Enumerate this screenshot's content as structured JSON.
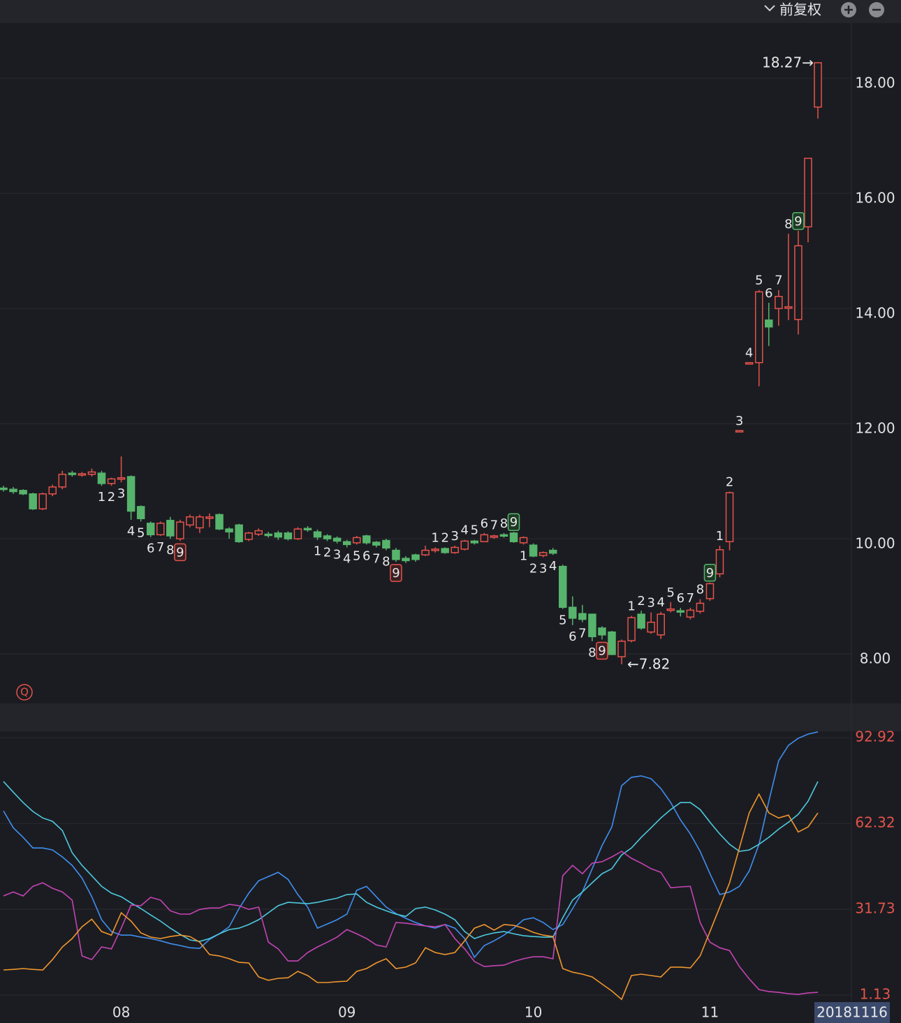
{
  "toolbar": {
    "adjust": "前复权"
  },
  "chart_data": [
    {
      "type": "candlestick",
      "badge": "Q",
      "up_color": "#e5534b",
      "down_color": "#57b46c",
      "grid": true,
      "ylim": [
        7.14,
        18.96
      ],
      "yticks": [
        {
          "value": 8,
          "label": "8.00"
        },
        {
          "value": 10,
          "label": "10.00"
        },
        {
          "value": 12,
          "label": "12.00"
        },
        {
          "value": 14,
          "label": "14.00"
        },
        {
          "value": 16,
          "label": "16.00"
        },
        {
          "value": 18,
          "label": "18.00"
        }
      ],
      "open": [
        10.88,
        10.86,
        10.84,
        10.78,
        10.52,
        10.78,
        10.9,
        11.14,
        11.11,
        11.12,
        11.14,
        10.96,
        11.04,
        11.08,
        10.56,
        10.27,
        10.07,
        10.32,
        10.0,
        10.24,
        10.19,
        10.36,
        10.42,
        10.17,
        10.24,
        9.99,
        10.08,
        10.08,
        10.1,
        10.1,
        10.0,
        10.18,
        10.12,
        10.05,
        10.01,
        9.95,
        9.93,
        10.05,
        9.94,
        9.97,
        9.8,
        9.66,
        9.72,
        9.72,
        9.8,
        9.83,
        9.76,
        9.82,
        9.96,
        9.95,
        10.03,
        10.07,
        10.1,
        9.93,
        9.89,
        9.71,
        9.8,
        9.52,
        8.81,
        8.7,
        8.69,
        8.45,
        8.38,
        7.95,
        8.23,
        8.69,
        8.38,
        8.33,
        8.76,
        8.75,
        8.64,
        8.74,
        8.96,
        9.39,
        9.95,
        11.87,
        13.05,
        13.06,
        13.8,
        14.0,
        14.02,
        13.81,
        15.42,
        17.5
      ],
      "high": [
        10.92,
        10.9,
        10.86,
        10.8,
        10.8,
        10.94,
        11.18,
        11.18,
        11.16,
        11.22,
        11.18,
        11.06,
        11.43,
        11.1,
        10.58,
        10.3,
        10.3,
        10.38,
        10.33,
        10.42,
        10.42,
        10.44,
        10.44,
        10.2,
        10.26,
        10.12,
        10.18,
        10.12,
        10.14,
        10.13,
        10.2,
        10.22,
        10.16,
        10.08,
        10.04,
        9.98,
        10.05,
        10.07,
        9.96,
        10.0,
        9.84,
        9.7,
        9.74,
        9.88,
        9.85,
        9.85,
        9.88,
        9.98,
        9.98,
        10.1,
        10.07,
        10.1,
        10.12,
        10.04,
        9.92,
        9.78,
        9.84,
        9.55,
        9.0,
        8.85,
        8.7,
        8.48,
        8.4,
        8.25,
        8.66,
        8.75,
        8.72,
        8.73,
        8.9,
        8.8,
        8.8,
        8.95,
        9.24,
        9.88,
        10.82,
        11.88,
        13.06,
        14.32,
        14.1,
        14.32,
        15.3,
        15.35,
        16.61,
        18.27
      ],
      "low": [
        10.82,
        10.78,
        10.76,
        10.5,
        10.5,
        10.74,
        10.86,
        11.08,
        11.08,
        11.08,
        10.92,
        10.92,
        10.98,
        10.33,
        10.3,
        10.03,
        10.05,
        10.0,
        9.96,
        10.2,
        10.1,
        10.2,
        10.15,
        10.0,
        9.93,
        9.96,
        10.05,
        10.02,
        9.98,
        9.97,
        9.98,
        10.12,
        9.98,
        9.96,
        9.92,
        9.85,
        9.9,
        9.9,
        9.85,
        9.8,
        9.6,
        9.58,
        9.6,
        9.7,
        9.76,
        9.74,
        9.74,
        9.8,
        9.9,
        9.94,
        10.0,
        10.02,
        9.93,
        9.9,
        9.68,
        9.68,
        9.72,
        8.78,
        8.5,
        8.55,
        8.22,
        8.25,
        7.98,
        7.82,
        8.2,
        8.42,
        8.35,
        8.26,
        8.72,
        8.65,
        8.6,
        8.7,
        8.92,
        9.33,
        9.8,
        11.87,
        13.05,
        12.65,
        13.35,
        13.7,
        13.8,
        13.55,
        15.15,
        17.3
      ],
      "close": [
        10.86,
        10.82,
        10.78,
        10.52,
        10.78,
        10.9,
        11.12,
        11.12,
        11.13,
        11.16,
        10.96,
        11.04,
        11.06,
        10.48,
        10.35,
        10.07,
        10.27,
        10.05,
        10.29,
        10.38,
        10.38,
        10.38,
        10.17,
        10.12,
        9.95,
        10.1,
        10.14,
        10.06,
        10.03,
        10.0,
        10.17,
        10.16,
        10.03,
        10.0,
        9.96,
        9.9,
        10.02,
        9.93,
        9.89,
        9.84,
        9.64,
        9.62,
        9.64,
        9.8,
        9.82,
        9.76,
        9.85,
        9.96,
        9.93,
        10.07,
        10.05,
        10.05,
        9.95,
        10.02,
        9.7,
        9.76,
        9.75,
        8.81,
        8.62,
        8.6,
        8.3,
        8.33,
        7.99,
        8.22,
        8.63,
        8.45,
        8.55,
        8.69,
        8.78,
        8.73,
        8.76,
        8.88,
        9.22,
        9.81,
        10.8,
        11.88,
        13.06,
        14.29,
        13.68,
        14.21,
        14.03,
        15.09,
        16.61,
        18.27
      ],
      "td_buy": [
        null,
        null,
        null,
        null,
        null,
        null,
        null,
        null,
        null,
        null,
        1,
        2,
        3,
        4,
        5,
        6,
        7,
        8,
        9,
        null,
        null,
        null,
        null,
        null,
        null,
        null,
        null,
        null,
        null,
        null,
        null,
        null,
        1,
        2,
        3,
        4,
        5,
        6,
        7,
        8,
        9,
        null,
        null,
        null,
        null,
        null,
        null,
        null,
        null,
        null,
        null,
        null,
        null,
        1,
        2,
        3,
        4,
        5,
        6,
        7,
        8,
        9,
        null,
        null,
        null,
        null,
        null,
        null,
        null,
        null,
        null,
        null,
        null,
        null,
        null,
        null,
        null,
        null,
        null,
        null,
        null,
        null,
        null,
        null
      ],
      "td_sell": [
        null,
        null,
        null,
        null,
        null,
        null,
        null,
        null,
        null,
        null,
        null,
        null,
        null,
        null,
        null,
        null,
        null,
        null,
        null,
        null,
        null,
        null,
        null,
        null,
        null,
        null,
        null,
        null,
        null,
        null,
        null,
        null,
        null,
        null,
        null,
        null,
        null,
        null,
        null,
        null,
        null,
        null,
        null,
        null,
        1,
        2,
        3,
        4,
        5,
        6,
        7,
        8,
        9,
        null,
        null,
        null,
        null,
        null,
        null,
        null,
        null,
        null,
        null,
        null,
        1,
        2,
        3,
        4,
        5,
        6,
        7,
        8,
        9,
        1,
        2,
        3,
        4,
        5,
        6,
        7,
        8,
        9,
        null,
        null
      ],
      "annotations": [
        {
          "value": 18.27,
          "label": "18.27→"
        },
        {
          "value": 7.82,
          "label": "←7.82"
        }
      ]
    },
    {
      "type": "line",
      "categories": [
        null,
        null,
        null,
        null,
        null,
        null,
        null,
        null,
        null,
        null,
        null,
        null,
        "08",
        null,
        null,
        null,
        null,
        null,
        null,
        null,
        null,
        null,
        null,
        null,
        null,
        null,
        null,
        null,
        null,
        null,
        null,
        null,
        null,
        null,
        null,
        "09",
        null,
        null,
        null,
        null,
        null,
        null,
        null,
        null,
        null,
        null,
        null,
        null,
        null,
        null,
        null,
        null,
        null,
        null,
        "10",
        null,
        null,
        null,
        null,
        null,
        null,
        null,
        null,
        null,
        null,
        null,
        null,
        null,
        null,
        null,
        null,
        null,
        "11",
        null,
        null,
        null,
        null,
        null,
        null,
        null,
        null,
        null,
        null,
        "20181116"
      ],
      "ylim": [
        -0.86,
        95.2
      ],
      "yticks": [
        1.13,
        31.73,
        62.32,
        92.92
      ],
      "grid": true,
      "series": [
        {
          "color": "#3f8ff0",
          "values": [
            66.8,
            60.8,
            57.4,
            53.6,
            53.6,
            52.9,
            50.4,
            47.4,
            42.9,
            36.2,
            28.0,
            23.8,
            22.5,
            22.5,
            21.8,
            21.3,
            20.5,
            19.5,
            18.8,
            18.0,
            17.8,
            21.0,
            23.0,
            25.5,
            32.0,
            37.5,
            41.9,
            43.4,
            44.9,
            42.4,
            37.0,
            32.5,
            25.0,
            26.5,
            28.0,
            30.0,
            38.5,
            39.9,
            36.2,
            32.5,
            30.2,
            28.5,
            27.0,
            25.8,
            25.0,
            26.3,
            25.0,
            21.3,
            14.6,
            18.8,
            20.5,
            22.5,
            25.0,
            28.0,
            28.7,
            27.0,
            24.5,
            26.3,
            32.0,
            37.9,
            46.2,
            54.4,
            61.1,
            75.8,
            78.8,
            79.3,
            78.3,
            74.8,
            69.8,
            63.6,
            58.6,
            52.4,
            44.4,
            37.0,
            37.9,
            39.9,
            45.4,
            54.9,
            70.3,
            84.7,
            90.2,
            92.7,
            94.2,
            95.0
          ]
        },
        {
          "color": "#4cc9df",
          "values": [
            77.3,
            73.5,
            69.8,
            66.6,
            64.3,
            63.1,
            59.8,
            51.9,
            47.4,
            43.7,
            39.9,
            37.5,
            36.2,
            34.0,
            32.0,
            29.7,
            27.5,
            25.0,
            22.8,
            20.8,
            20.3,
            21.3,
            23.0,
            24.5,
            25.0,
            26.3,
            28.0,
            30.5,
            33.0,
            34.2,
            34.0,
            33.7,
            34.2,
            35.0,
            35.7,
            37.0,
            37.2,
            34.2,
            32.5,
            31.2,
            30.0,
            29.2,
            32.0,
            32.5,
            31.5,
            30.0,
            28.0,
            23.8,
            21.3,
            22.5,
            23.3,
            23.8,
            23.0,
            22.3,
            22.0,
            21.8,
            21.8,
            28.7,
            35.0,
            37.9,
            41.2,
            44.4,
            46.2,
            51.1,
            53.6,
            57.4,
            60.8,
            64.3,
            67.3,
            69.8,
            69.8,
            67.3,
            62.8,
            58.6,
            54.9,
            52.4,
            52.9,
            54.9,
            57.4,
            60.3,
            62.8,
            65.6,
            70.3,
            77.3
          ]
        },
        {
          "color": "#c444b4",
          "values": [
            36.5,
            37.9,
            36.5,
            39.9,
            41.2,
            39.2,
            37.9,
            35.0,
            15.1,
            13.8,
            18.3,
            17.6,
            25.0,
            33.2,
            33.0,
            36.0,
            35.0,
            31.2,
            30.0,
            30.0,
            31.7,
            32.2,
            32.2,
            33.5,
            33.0,
            31.7,
            32.5,
            20.0,
            17.6,
            13.3,
            13.3,
            16.3,
            18.3,
            20.0,
            21.8,
            24.5,
            23.0,
            21.3,
            19.0,
            18.3,
            27.0,
            26.8,
            26.3,
            25.8,
            25.5,
            26.3,
            21.3,
            17.6,
            13.1,
            11.3,
            11.6,
            11.8,
            13.1,
            14.1,
            14.8,
            14.8,
            14.1,
            43.7,
            47.4,
            44.4,
            48.2,
            48.7,
            50.4,
            52.4,
            49.9,
            48.2,
            46.2,
            44.9,
            39.4,
            39.7,
            39.9,
            27.0,
            20.0,
            18.0,
            17.0,
            11.3,
            6.9,
            3.1,
            2.4,
            2.1,
            1.6,
            1.4,
            1.9,
            2.1
          ]
        },
        {
          "color": "#f0962e",
          "values": [
            10.1,
            10.3,
            10.6,
            10.3,
            10.1,
            13.8,
            18.3,
            21.3,
            25.5,
            28.2,
            23.8,
            22.5,
            30.5,
            27.5,
            23.3,
            21.8,
            21.3,
            22.0,
            22.5,
            22.0,
            20.0,
            15.6,
            15.1,
            14.1,
            12.8,
            12.6,
            7.6,
            6.4,
            7.1,
            7.3,
            9.6,
            8.1,
            5.6,
            5.6,
            5.9,
            6.1,
            9.6,
            10.6,
            12.6,
            14.1,
            10.6,
            11.1,
            12.6,
            18.0,
            16.3,
            15.6,
            16.3,
            20.5,
            25.0,
            26.3,
            24.3,
            26.3,
            26.0,
            25.0,
            23.5,
            22.5,
            22.0,
            10.6,
            9.3,
            8.6,
            7.6,
            5.1,
            2.6,
            -0.4,
            8.1,
            8.6,
            8.1,
            7.6,
            11.1,
            11.1,
            10.8,
            15.1,
            23.8,
            32.5,
            41.2,
            53.6,
            66.1,
            72.8,
            66.1,
            64.3,
            65.3,
            59.3,
            61.1,
            66.1
          ]
        }
      ]
    }
  ]
}
